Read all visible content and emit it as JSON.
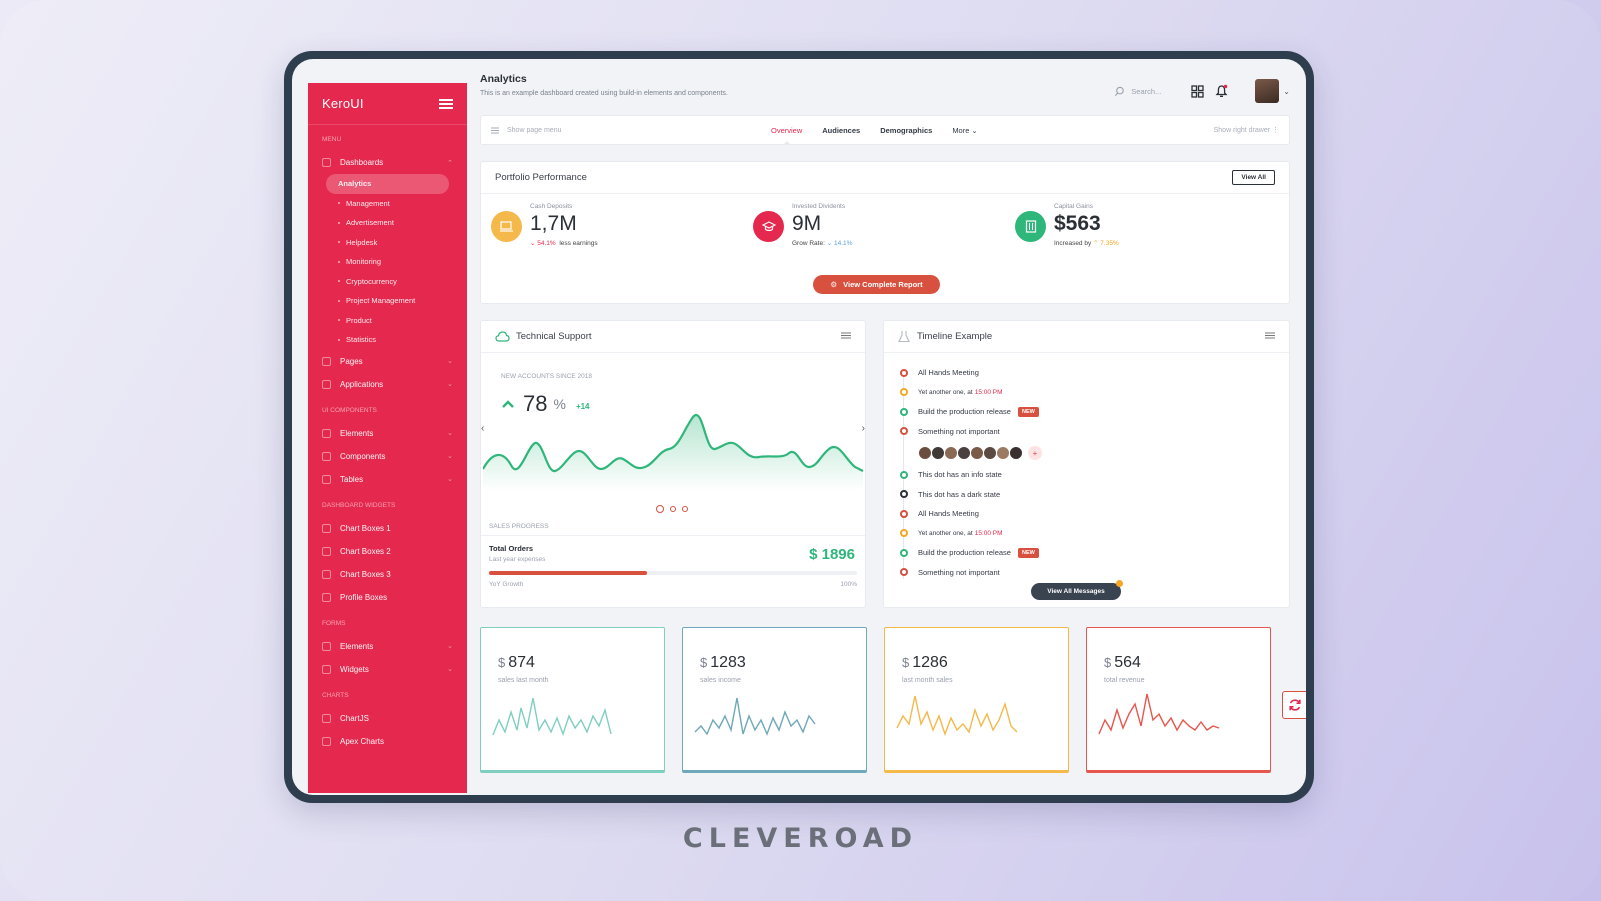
{
  "app": {
    "logo": "KeroUI",
    "footer_brand": "CLEVEROAD"
  },
  "sidebar": {
    "menu_label": "MENU",
    "dashboards": "Dashboards",
    "dashboard_items": [
      "Analytics",
      "Management",
      "Advertisement",
      "Helpdesk",
      "Monitoring",
      "Cryptocurrency",
      "Project Management",
      "Product",
      "Statistics"
    ],
    "pages": "Pages",
    "applications": "Applications",
    "ui_components_label": "UI COMPONENTS",
    "elements": "Elements",
    "components": "Components",
    "tables": "Tables",
    "widgets_label": "DASHBOARD WIDGETS",
    "chart_boxes_1": "Chart Boxes 1",
    "chart_boxes_2": "Chart Boxes 2",
    "chart_boxes_3": "Chart Boxes 3",
    "profile_boxes": "Profile Boxes",
    "forms_label": "FORMS",
    "form_elements": "Elements",
    "form_widgets": "Widgets",
    "charts_label": "CHARTS",
    "chartjs": "ChartJS",
    "apex": "Apex Charts"
  },
  "header": {
    "title": "Analytics",
    "subtitle": "This is an example dashboard created using build-in elements and components.",
    "search_placeholder": "Search..."
  },
  "tabbar": {
    "left": "Show page menu",
    "tabs": [
      "Overview",
      "Audiences",
      "Demographics",
      "More"
    ],
    "right": "Show right drawer"
  },
  "portfolio": {
    "title": "Portfolio Performance",
    "view_all": "View All",
    "cash_label": "Cash Deposits",
    "cash_value": "1,7M",
    "cash_delta": "54.1%",
    "cash_note": "less earnings",
    "div_label": "Invested Dividents",
    "div_value": "9M",
    "div_note": "Grow Rate:",
    "div_delta": "14.1%",
    "gains_label": "Capital Gains",
    "gains_value": "$563",
    "gains_note": "Increased by",
    "gains_delta": "7.35%",
    "report_button": "View Complete Report"
  },
  "support": {
    "title": "Technical Support",
    "accounts_label": "NEW ACCOUNTS SINCE 2018",
    "accounts_value": "78",
    "accounts_unit": "%",
    "accounts_delta": "+14",
    "sales_label": "SALES PROGRESS",
    "orders_title": "Total Orders",
    "orders_sub": "Last year expenses",
    "orders_amount": "$ 1896",
    "growth_label": "YoY Growth",
    "growth_max": "100%",
    "growth_progress": 0.43
  },
  "timeline": {
    "title": "Timeline Example",
    "items": [
      {
        "text": "All Hands Meeting",
        "color": "#d8503e"
      },
      {
        "text": "Yet another one, at ",
        "time": "15:00 PM",
        "color": "#f5a623"
      },
      {
        "text": "Build the production release",
        "badge": "NEW",
        "color": "#2fb67a"
      },
      {
        "text": "Something not important",
        "color": "#d8503e"
      },
      {
        "text": "This dot has an info state",
        "color": "#2fb67a"
      },
      {
        "text": "This dot has a dark state",
        "color": "#2b2f36"
      },
      {
        "text": "All Hands Meeting",
        "color": "#d8503e"
      },
      {
        "text": "Yet another one, at ",
        "time": "15:00 PM",
        "color": "#f5a623"
      },
      {
        "text": "Build the production release",
        "badge": "NEW",
        "color": "#2fb67a"
      },
      {
        "text": "Something not important",
        "color": "#d8503e"
      }
    ],
    "button": "View All Messages"
  },
  "mini_cards": [
    {
      "currency": "$",
      "amount": "874",
      "label": "sales last month",
      "color": "#7fcfc0"
    },
    {
      "currency": "$",
      "amount": "1283",
      "label": "sales income",
      "color": "#6fa8b8"
    },
    {
      "currency": "$",
      "amount": "1286",
      "label": "last month sales",
      "color": "#f5b84a"
    },
    {
      "currency": "$",
      "amount": "564",
      "label": "total revenue",
      "color": "#e5564e"
    }
  ]
}
